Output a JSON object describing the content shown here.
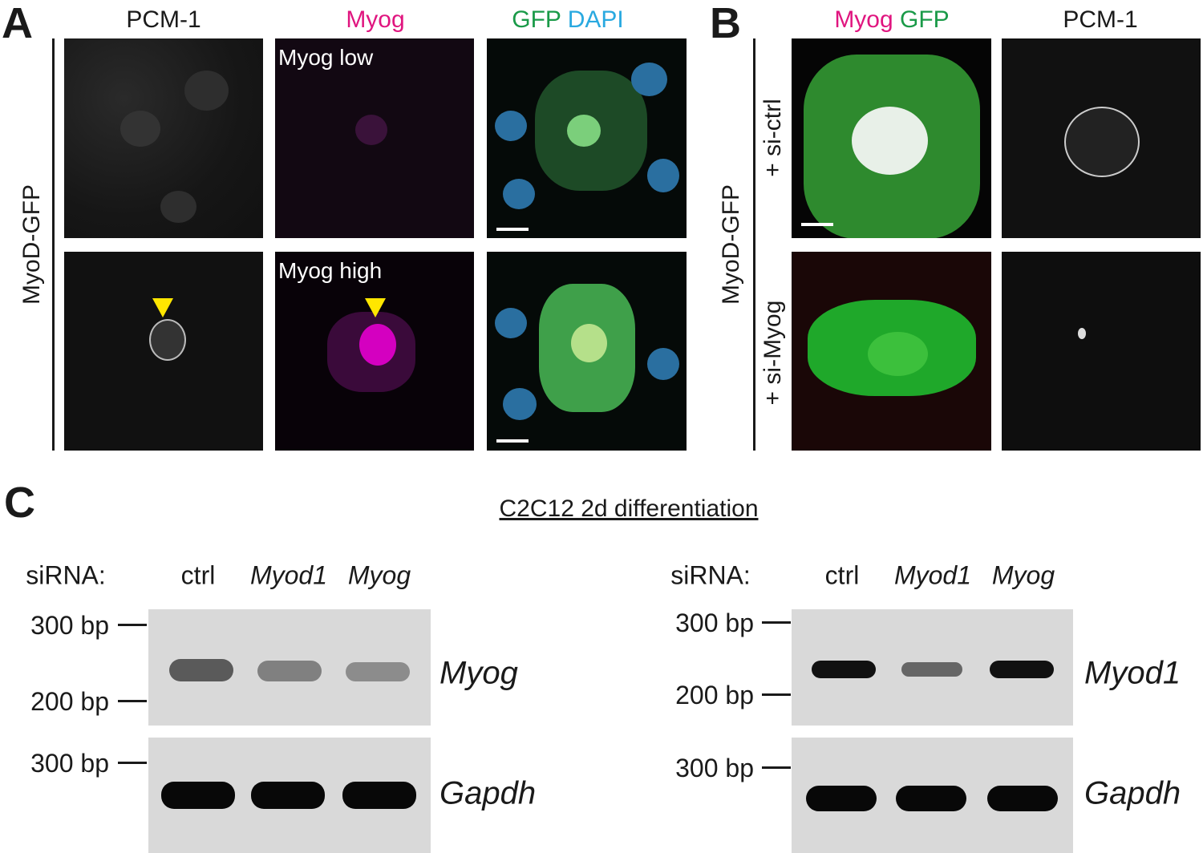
{
  "panel_a": {
    "letter": "A",
    "row_label": "MyoD-GFP",
    "column_titles": {
      "pcm1": "PCM-1",
      "myog": "Myog",
      "gfp": "GFP",
      "dapi": "DAPI"
    },
    "image_labels": [
      "Myog low",
      "Myog high"
    ]
  },
  "panel_b": {
    "letter": "B",
    "row_label": "MyoD-GFP",
    "column_titles": {
      "myog": "Myog",
      "gfp": "GFP",
      "pcm1": "PCM-1"
    },
    "row_labels": [
      "+ si-ctrl",
      "+ si-Myog"
    ]
  },
  "panel_c": {
    "letter": "C",
    "title": "C2C12 2d differentiation",
    "gels": [
      {
        "sirna_label": "siRNA:",
        "lanes": [
          "ctrl",
          "Myod1",
          "Myog"
        ],
        "blots": [
          {
            "markers": [
              "300 bp",
              "200 bp"
            ],
            "gene": "Myog"
          },
          {
            "markers": [
              "300 bp"
            ],
            "gene": "Gapdh"
          }
        ]
      },
      {
        "sirna_label": "siRNA:",
        "lanes": [
          "ctrl",
          "Myod1",
          "Myog"
        ],
        "blots": [
          {
            "markers": [
              "300 bp",
              "200 bp"
            ],
            "gene": "Myod1"
          },
          {
            "markers": [
              "300 bp"
            ],
            "gene": "Gapdh"
          }
        ]
      }
    ]
  }
}
